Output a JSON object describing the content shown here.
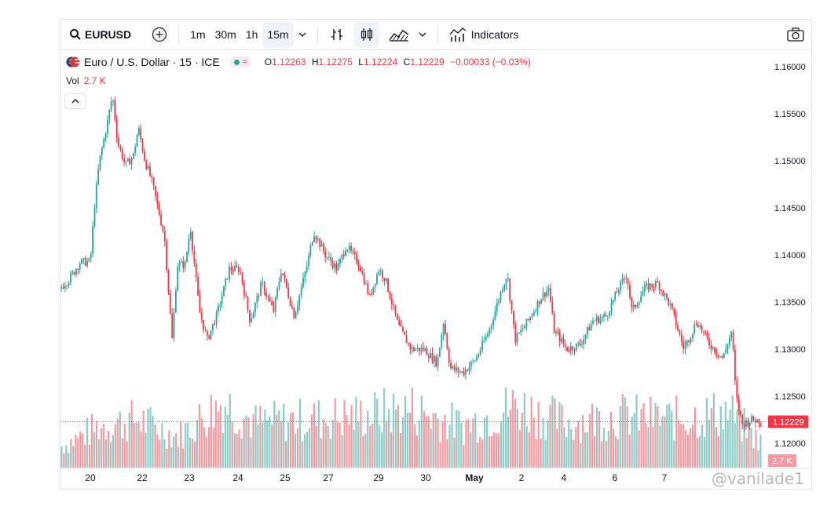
{
  "toolbar": {
    "symbol": "EURUSD",
    "intervals": [
      "1m",
      "30m",
      "1h",
      "15m"
    ],
    "active_interval": "15m",
    "indicators_label": "Indicators"
  },
  "legend": {
    "title": "Euro / U.S. Dollar · 15 · ICE",
    "o_label": "O",
    "o": "1.12263",
    "h_label": "H",
    "h": "1.12275",
    "l_label": "L",
    "l": "1.12224",
    "c_label": "C",
    "c": "1.12229",
    "change": "−0.00033 (−0.03%)"
  },
  "volume": {
    "label": "Vol",
    "value": "2.7 K"
  },
  "price_tag": "1.12229",
  "volume_tag": "2.7 K",
  "watermark": "@vanilade1",
  "colors": {
    "up": "#26a69a",
    "down": "#f23645",
    "up_vol": "#8ccdc6",
    "down_vol": "#f59aa1"
  },
  "chart_data": {
    "type": "candlestick",
    "y_ticks": [
      "1.16000",
      "1.15500",
      "1.15000",
      "1.14500",
      "1.14000",
      "1.13500",
      "1.13000",
      "1.12500",
      "1.12000"
    ],
    "ylim": [
      1.1195,
      1.1625
    ],
    "x_ticks": [
      "20",
      "22",
      "23",
      "24",
      "25",
      "27",
      "29",
      "30",
      "May",
      "2",
      "4",
      "6",
      "7"
    ],
    "last_price": 1.12229,
    "close_path": [
      {
        "t": 0,
        "v": 1.1365
      },
      {
        "t": 0.7,
        "v": 1.1375
      },
      {
        "t": 1.5,
        "v": 1.1392
      },
      {
        "t": 2.3,
        "v": 1.1393
      },
      {
        "t": 2.6,
        "v": 1.145
      },
      {
        "t": 3.0,
        "v": 1.15
      },
      {
        "t": 3.6,
        "v": 1.154
      },
      {
        "t": 4.0,
        "v": 1.157
      },
      {
        "t": 4.4,
        "v": 1.152
      },
      {
        "t": 5.0,
        "v": 1.1495
      },
      {
        "t": 5.6,
        "v": 1.1505
      },
      {
        "t": 6.0,
        "v": 1.1535
      },
      {
        "t": 6.5,
        "v": 1.15
      },
      {
        "t": 7.0,
        "v": 1.148
      },
      {
        "t": 7.5,
        "v": 1.145
      },
      {
        "t": 8.0,
        "v": 1.142
      },
      {
        "t": 8.6,
        "v": 1.131
      },
      {
        "t": 9.0,
        "v": 1.139
      },
      {
        "t": 9.6,
        "v": 1.139
      },
      {
        "t": 10.0,
        "v": 1.143
      },
      {
        "t": 10.7,
        "v": 1.134
      },
      {
        "t": 11.3,
        "v": 1.131
      },
      {
        "t": 12.0,
        "v": 1.1335
      },
      {
        "t": 13.0,
        "v": 1.1385
      },
      {
        "t": 13.8,
        "v": 1.1385
      },
      {
        "t": 14.6,
        "v": 1.133
      },
      {
        "t": 15.5,
        "v": 1.137
      },
      {
        "t": 16.4,
        "v": 1.134
      },
      {
        "t": 17.0,
        "v": 1.1385
      },
      {
        "t": 18.0,
        "v": 1.1335
      },
      {
        "t": 19.0,
        "v": 1.139
      },
      {
        "t": 19.5,
        "v": 1.1425
      },
      {
        "t": 20.4,
        "v": 1.14
      },
      {
        "t": 21.3,
        "v": 1.1385
      },
      {
        "t": 22.0,
        "v": 1.141
      },
      {
        "t": 23.0,
        "v": 1.139
      },
      {
        "t": 23.8,
        "v": 1.1355
      },
      {
        "t": 24.5,
        "v": 1.1385
      },
      {
        "t": 25.0,
        "v": 1.1375
      },
      {
        "t": 26.0,
        "v": 1.1325
      },
      {
        "t": 27.0,
        "v": 1.13
      },
      {
        "t": 28.0,
        "v": 1.13
      },
      {
        "t": 29.0,
        "v": 1.1285
      },
      {
        "t": 29.5,
        "v": 1.133
      },
      {
        "t": 30.0,
        "v": 1.128
      },
      {
        "t": 31.0,
        "v": 1.1275
      },
      {
        "t": 32.0,
        "v": 1.129
      },
      {
        "t": 33.0,
        "v": 1.132
      },
      {
        "t": 34.0,
        "v": 1.1365
      },
      {
        "t": 34.4,
        "v": 1.138
      },
      {
        "t": 35.0,
        "v": 1.131
      },
      {
        "t": 36.0,
        "v": 1.133
      },
      {
        "t": 37.0,
        "v": 1.1355
      },
      {
        "t": 37.6,
        "v": 1.1365
      },
      {
        "t": 38.0,
        "v": 1.132
      },
      {
        "t": 39.0,
        "v": 1.13
      },
      {
        "t": 40.0,
        "v": 1.1305
      },
      {
        "t": 41.0,
        "v": 1.133
      },
      {
        "t": 42.0,
        "v": 1.1335
      },
      {
        "t": 43.0,
        "v": 1.1365
      },
      {
        "t": 43.6,
        "v": 1.138
      },
      {
        "t": 44.0,
        "v": 1.134
      },
      {
        "t": 45.0,
        "v": 1.1365
      },
      {
        "t": 46.0,
        "v": 1.137
      },
      {
        "t": 47.0,
        "v": 1.1345
      },
      {
        "t": 48.0,
        "v": 1.13
      },
      {
        "t": 49.0,
        "v": 1.133
      },
      {
        "t": 50.0,
        "v": 1.1305
      },
      {
        "t": 51.0,
        "v": 1.129
      },
      {
        "t": 51.7,
        "v": 1.132
      },
      {
        "t": 52.0,
        "v": 1.125
      },
      {
        "t": 52.5,
        "v": 1.122
      },
      {
        "t": 53.2,
        "v": 1.1225
      },
      {
        "t": 54.0,
        "v": 1.1224
      }
    ],
    "volume_envelope": [
      {
        "t": 0,
        "v": 0.3
      },
      {
        "t": 3,
        "v": 0.6
      },
      {
        "t": 6,
        "v": 0.7
      },
      {
        "t": 9,
        "v": 0.45
      },
      {
        "t": 12.5,
        "v": 0.95
      },
      {
        "t": 15,
        "v": 0.65
      },
      {
        "t": 19,
        "v": 0.7
      },
      {
        "t": 23,
        "v": 0.75
      },
      {
        "t": 27,
        "v": 0.85
      },
      {
        "t": 31,
        "v": 0.6
      },
      {
        "t": 35,
        "v": 0.9
      },
      {
        "t": 39,
        "v": 0.65
      },
      {
        "t": 43,
        "v": 0.75
      },
      {
        "t": 47,
        "v": 0.7
      },
      {
        "t": 51.5,
        "v": 0.8
      },
      {
        "t": 54,
        "v": 0.35
      }
    ]
  }
}
